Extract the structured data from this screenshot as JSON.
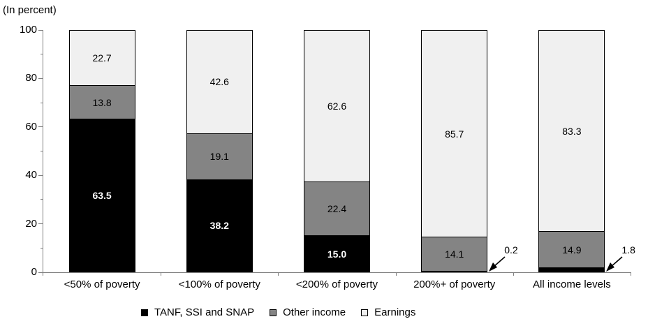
{
  "header": {
    "axis_unit_label": "(In percent)"
  },
  "chart_data": {
    "type": "bar",
    "stacked": true,
    "title": "",
    "ylabel": "(In percent)",
    "xlabel": "",
    "ylim": [
      0,
      100
    ],
    "y_major_ticks": [
      0,
      20,
      40,
      60,
      80,
      100
    ],
    "y_minor_ticks": [
      10,
      30,
      50,
      70,
      90
    ],
    "grid": false,
    "legend_position": "bottom",
    "axis_color": "#808080",
    "categories": [
      "<50% of poverty",
      "<100% of poverty",
      "<200% of poverty",
      "200%+ of poverty",
      "All income levels"
    ],
    "series": [
      {
        "name": "TANF, SSI and SNAP",
        "color": "#000000",
        "label_color": "#ffffff",
        "label_bold": true,
        "values": [
          63.5,
          38.2,
          15.0,
          0.2,
          1.8
        ]
      },
      {
        "name": "Other income",
        "color": "#848484",
        "label_color": "#000000",
        "label_bold": false,
        "values": [
          13.8,
          19.1,
          22.4,
          14.1,
          14.9
        ]
      },
      {
        "name": "Earnings",
        "color": "#f0f0f0",
        "label_color": "#000000",
        "label_bold": false,
        "values": [
          22.7,
          42.6,
          62.6,
          85.7,
          83.3
        ]
      }
    ],
    "annotations": [
      {
        "text": "0.2",
        "series": "TANF, SSI and SNAP",
        "category_index": 3
      },
      {
        "text": "1.8",
        "series": "TANF, SSI and SNAP",
        "category_index": 4
      }
    ]
  }
}
